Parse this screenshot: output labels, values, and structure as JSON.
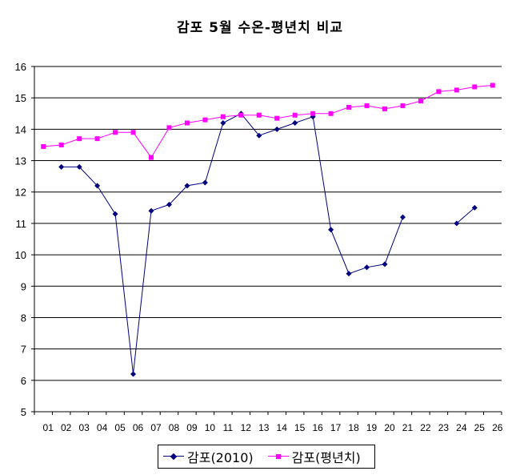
{
  "chart_data": {
    "type": "line",
    "title": "감포 5월 수온-평년치 비교",
    "xlabel": "",
    "ylabel": "",
    "categories": [
      "01",
      "02",
      "03",
      "04",
      "05",
      "06",
      "07",
      "08",
      "09",
      "10",
      "11",
      "12",
      "13",
      "14",
      "15",
      "16",
      "17",
      "18",
      "19",
      "20",
      "21",
      "22",
      "23",
      "24",
      "25",
      "26"
    ],
    "ylim": [
      5,
      16
    ],
    "yticks": [
      5,
      6,
      7,
      8,
      9,
      10,
      11,
      12,
      13,
      14,
      15,
      16
    ],
    "grid": true,
    "legend_position": "bottom",
    "series": [
      {
        "name": "감포(2010)",
        "color": "#000080",
        "marker": "diamond",
        "values": [
          null,
          12.8,
          12.8,
          12.2,
          11.3,
          6.2,
          11.4,
          11.6,
          12.2,
          12.3,
          14.2,
          14.5,
          13.8,
          14.0,
          14.2,
          14.4,
          10.8,
          9.4,
          9.6,
          9.7,
          11.2,
          null,
          null,
          11.0,
          11.5,
          null
        ]
      },
      {
        "name": "감포(평년치)",
        "color": "#FF00FF",
        "marker": "square",
        "values": [
          13.45,
          13.5,
          13.7,
          13.7,
          13.9,
          13.9,
          13.1,
          14.05,
          14.2,
          14.3,
          14.4,
          14.45,
          14.45,
          14.35,
          14.45,
          14.5,
          14.5,
          14.7,
          14.75,
          14.65,
          14.75,
          14.9,
          15.2,
          15.25,
          15.35,
          15.4
        ]
      }
    ]
  }
}
